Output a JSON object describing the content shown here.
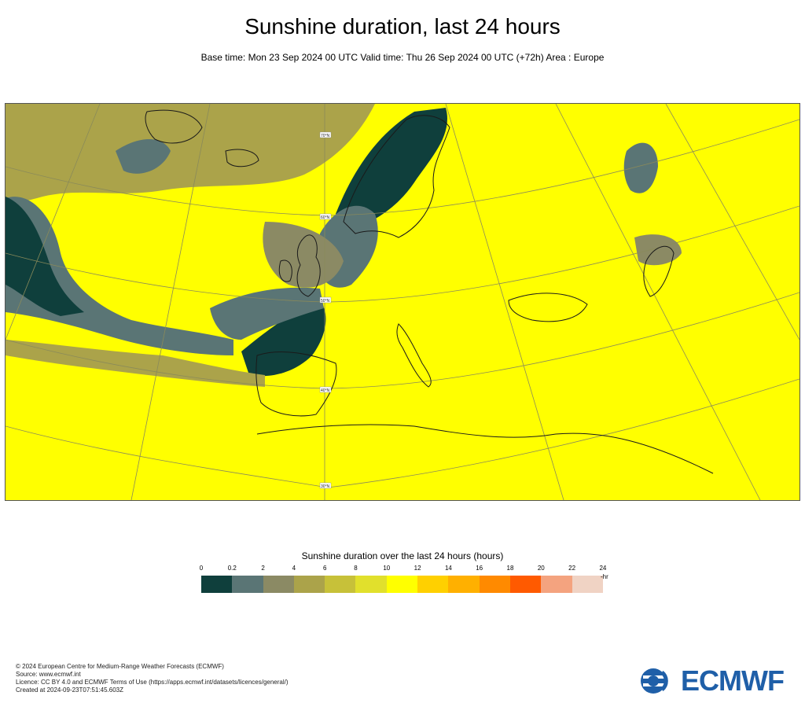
{
  "header": {
    "title": "Sunshine duration, last 24 hours",
    "subtitle": "Base time: Mon 23 Sep 2024 00 UTC Valid time: Thu 26 Sep 2024 00 UTC (+72h) Area : Europe"
  },
  "map": {
    "lat_labels": [
      "70°N",
      "60°N",
      "50°N",
      "40°N",
      "30°N"
    ],
    "background_color": "#ffff00"
  },
  "legend": {
    "title": "Sunshine duration over the last 24 hours (hours)",
    "ticks": [
      "0",
      "0.2",
      "2",
      "4",
      "6",
      "8",
      "10",
      "12",
      "14",
      "16",
      "18",
      "20",
      "22",
      "24"
    ],
    "unit": "-hr",
    "colors": [
      "#0f3f3c",
      "#5a7575",
      "#8b8a64",
      "#aba34a",
      "#c7c139",
      "#e1e02c",
      "#ffff00",
      "#ffd000",
      "#ffb000",
      "#ff8a00",
      "#ff5a00",
      "#f4a37f",
      "#f0d3c4"
    ]
  },
  "footer": {
    "line1": "© 2024 European Centre for Medium-Range Weather Forecasts (ECMWF)",
    "line2": "Source: www.ecmwf.int",
    "line3": "Licence: CC BY 4.0 and ECMWF Terms of Use (https://apps.ecmwf.int/datasets/licences/general/)",
    "line4": "Created at 2024-09-23T07:51:45.603Z",
    "logo": "ECMWF"
  }
}
